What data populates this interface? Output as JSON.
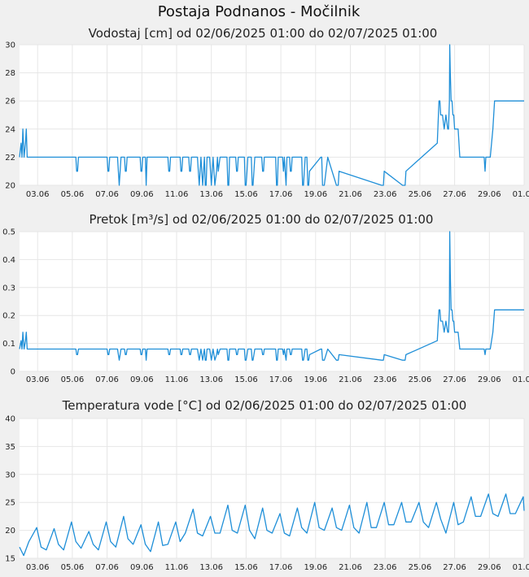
{
  "title": "Postaja Podnanos - Močilnik",
  "x_tick_labels": [
    "03.06",
    "05.06",
    "07.06",
    "09.06",
    "11.06",
    "13.06",
    "15.06",
    "17.06",
    "19.06",
    "21.06",
    "23.06",
    "25.06",
    "27.06",
    "29.06",
    "01.07"
  ],
  "line_color": "#1f8fd8",
  "chart_data": [
    {
      "type": "line",
      "title": "Vodostaj [cm] od 02/06/2025 01:00 do 02/07/2025 01:00",
      "ylim": [
        20,
        30
      ],
      "yticks": [
        20,
        22,
        24,
        26,
        28,
        30
      ],
      "xlim_days": [
        1.96,
        31.0
      ],
      "x_unit": "day of June 2025 (01.07 = 31)",
      "series": [
        {
          "x": [
            1.96,
            2.05,
            2.1,
            2.15,
            2.22,
            2.3,
            2.35,
            2.4,
            2.5,
            2.6,
            5.2,
            5.25,
            5.3,
            5.35,
            7.0,
            7.05,
            7.1,
            7.15,
            7.6,
            7.7,
            7.8,
            7.85,
            8.0,
            8.05,
            8.1,
            8.15,
            8.9,
            8.95,
            9.0,
            9.05,
            9.2,
            9.25,
            9.3,
            9.4,
            10.5,
            10.55,
            10.6,
            10.65,
            10.7,
            11.2,
            11.25,
            11.3,
            11.35,
            11.7,
            11.75,
            11.8,
            11.85,
            12.2,
            12.3,
            12.4,
            12.5,
            12.6,
            12.65,
            12.7,
            12.75,
            12.9,
            13.0,
            13.1,
            13.2,
            13.3,
            13.35,
            13.4,
            13.5,
            13.9,
            13.95,
            14.0,
            14.05,
            14.4,
            14.45,
            14.5,
            14.55,
            14.9,
            14.95,
            15.0,
            15.05,
            15.1,
            15.3,
            15.35,
            15.4,
            15.5,
            15.9,
            15.95,
            16.0,
            16.05,
            16.1,
            16.7,
            16.75,
            16.8,
            16.85,
            17.1,
            17.15,
            17.2,
            17.3,
            17.35,
            17.5,
            17.55,
            17.6,
            17.65,
            18.2,
            18.25,
            18.3,
            18.35,
            18.4,
            18.5,
            18.55,
            18.6,
            18.65,
            19.3,
            19.35,
            19.4,
            19.5,
            19.6,
            19.7,
            20.2,
            20.25,
            20.3,
            20.35,
            22.8,
            22.85,
            22.9,
            22.95,
            24.0,
            24.05,
            24.15,
            24.2,
            26.0,
            26.1,
            26.15,
            26.2,
            26.3,
            26.4,
            26.5,
            26.6,
            26.65,
            26.7,
            26.72,
            26.75,
            26.8,
            26.85,
            26.9,
            26.95,
            27.0,
            27.05,
            27.1,
            27.2,
            27.3,
            27.35,
            27.5,
            27.55,
            28.7,
            28.75,
            28.8,
            28.85,
            29.0,
            29.05,
            29.2,
            29.3,
            29.35,
            31.0
          ],
          "y": [
            22,
            23,
            22,
            24,
            22,
            23,
            24,
            22,
            22,
            22,
            22,
            21,
            21,
            22,
            22,
            21,
            21,
            22,
            22,
            20,
            22,
            22,
            22,
            21,
            21,
            22,
            22,
            21,
            21,
            22,
            22,
            20,
            22,
            22,
            22,
            21,
            21,
            22,
            22,
            22,
            21,
            21,
            22,
            22,
            21,
            21,
            22,
            22,
            20,
            22,
            20,
            22,
            20,
            20,
            22,
            22,
            20,
            22,
            20,
            21,
            22,
            21,
            22,
            22,
            20,
            20,
            22,
            22,
            21,
            21,
            22,
            22,
            20,
            20,
            21,
            22,
            22,
            20,
            20,
            22,
            22,
            21,
            21,
            22,
            22,
            22,
            20,
            20,
            22,
            22,
            21,
            22,
            20,
            22,
            22,
            21,
            21,
            22,
            22,
            20,
            20,
            21,
            22,
            22,
            20,
            20,
            21,
            22,
            22,
            20,
            20,
            21,
            22,
            20,
            20,
            20,
            21,
            20,
            20,
            20,
            21,
            20,
            20,
            20,
            21,
            23,
            26,
            26,
            25,
            25,
            24,
            25,
            24,
            24,
            26,
            30,
            28,
            26,
            26,
            25,
            25,
            24,
            24,
            24,
            24,
            22,
            22,
            22,
            22,
            22,
            21,
            22,
            22,
            22,
            22,
            24,
            26,
            26,
            26
          ]
        }
      ]
    },
    {
      "type": "line",
      "title": "Pretok [m³/s] od 02/06/2025 01:00 do 02/07/2025 01:00",
      "ylim": [
        0,
        0.5
      ],
      "yticks": [
        0,
        0.1,
        0.2,
        0.3,
        0.4,
        0.5
      ],
      "xlim_days": [
        1.96,
        31.0
      ],
      "x_unit": "day of June 2025 (01.07 = 31)",
      "series": [
        {
          "x": [
            1.96,
            2.05,
            2.1,
            2.15,
            2.22,
            2.3,
            2.35,
            2.4,
            2.5,
            2.6,
            5.2,
            5.25,
            5.3,
            5.35,
            7.0,
            7.05,
            7.1,
            7.15,
            7.6,
            7.7,
            7.8,
            7.85,
            8.0,
            8.05,
            8.1,
            8.15,
            8.9,
            8.95,
            9.0,
            9.05,
            9.2,
            9.25,
            9.3,
            9.4,
            10.5,
            10.55,
            10.6,
            10.65,
            10.7,
            11.2,
            11.25,
            11.3,
            11.35,
            11.7,
            11.75,
            11.8,
            11.85,
            12.2,
            12.3,
            12.4,
            12.5,
            12.6,
            12.65,
            12.7,
            12.75,
            12.9,
            13.0,
            13.1,
            13.2,
            13.3,
            13.35,
            13.4,
            13.5,
            13.9,
            13.95,
            14.0,
            14.05,
            14.4,
            14.45,
            14.5,
            14.55,
            14.9,
            14.95,
            15.0,
            15.05,
            15.1,
            15.3,
            15.35,
            15.4,
            15.5,
            15.9,
            15.95,
            16.0,
            16.05,
            16.1,
            16.7,
            16.75,
            16.8,
            16.85,
            17.1,
            17.15,
            17.2,
            17.3,
            17.35,
            17.5,
            17.55,
            17.6,
            17.65,
            18.2,
            18.25,
            18.3,
            18.35,
            18.4,
            18.5,
            18.55,
            18.6,
            18.65,
            19.3,
            19.35,
            19.4,
            19.5,
            19.6,
            19.7,
            20.2,
            20.25,
            20.3,
            20.35,
            22.8,
            22.85,
            22.9,
            22.95,
            24.0,
            24.05,
            24.15,
            24.2,
            26.0,
            26.1,
            26.15,
            26.2,
            26.3,
            26.4,
            26.5,
            26.6,
            26.65,
            26.7,
            26.72,
            26.75,
            26.8,
            26.85,
            26.9,
            26.95,
            27.0,
            27.05,
            27.1,
            27.2,
            27.3,
            27.35,
            27.5,
            27.55,
            28.7,
            28.75,
            28.8,
            28.85,
            29.0,
            29.05,
            29.2,
            29.3,
            29.35,
            31.0
          ],
          "y": [
            0.08,
            0.11,
            0.08,
            0.14,
            0.08,
            0.11,
            0.14,
            0.08,
            0.08,
            0.08,
            0.08,
            0.06,
            0.06,
            0.08,
            0.08,
            0.06,
            0.06,
            0.08,
            0.08,
            0.04,
            0.08,
            0.08,
            0.08,
            0.06,
            0.06,
            0.08,
            0.08,
            0.06,
            0.06,
            0.08,
            0.08,
            0.04,
            0.08,
            0.08,
            0.08,
            0.06,
            0.06,
            0.08,
            0.08,
            0.08,
            0.06,
            0.06,
            0.08,
            0.08,
            0.06,
            0.06,
            0.08,
            0.08,
            0.04,
            0.08,
            0.04,
            0.08,
            0.04,
            0.04,
            0.08,
            0.08,
            0.04,
            0.08,
            0.04,
            0.06,
            0.08,
            0.06,
            0.08,
            0.08,
            0.04,
            0.04,
            0.08,
            0.08,
            0.06,
            0.06,
            0.08,
            0.08,
            0.04,
            0.04,
            0.06,
            0.08,
            0.08,
            0.04,
            0.04,
            0.08,
            0.08,
            0.06,
            0.06,
            0.08,
            0.08,
            0.08,
            0.04,
            0.04,
            0.08,
            0.08,
            0.06,
            0.08,
            0.04,
            0.08,
            0.08,
            0.06,
            0.06,
            0.08,
            0.08,
            0.04,
            0.04,
            0.06,
            0.08,
            0.08,
            0.04,
            0.04,
            0.06,
            0.08,
            0.08,
            0.04,
            0.04,
            0.06,
            0.08,
            0.04,
            0.04,
            0.04,
            0.06,
            0.04,
            0.04,
            0.04,
            0.06,
            0.04,
            0.04,
            0.04,
            0.06,
            0.11,
            0.22,
            0.22,
            0.18,
            0.18,
            0.14,
            0.18,
            0.14,
            0.14,
            0.22,
            0.5,
            0.35,
            0.22,
            0.22,
            0.18,
            0.18,
            0.14,
            0.14,
            0.14,
            0.14,
            0.08,
            0.08,
            0.08,
            0.08,
            0.08,
            0.06,
            0.08,
            0.08,
            0.08,
            0.08,
            0.14,
            0.22,
            0.22,
            0.22
          ]
        }
      ]
    },
    {
      "type": "line",
      "title": "Temperatura vode [°C] od 02/06/2025 01:00 do 02/07/2025 01:00",
      "ylim": [
        15,
        40
      ],
      "yticks": [
        15,
        20,
        25,
        30,
        35,
        40
      ],
      "xlim_days": [
        1.96,
        31.0
      ],
      "x_unit": "day of June 2025 (01.07 = 31)",
      "series": [
        {
          "x": [
            1.96,
            2.2,
            2.5,
            2.95,
            3.2,
            3.5,
            3.95,
            4.2,
            4.5,
            4.95,
            5.2,
            5.5,
            5.95,
            6.2,
            6.5,
            6.95,
            7.2,
            7.5,
            7.95,
            8.2,
            8.5,
            8.95,
            9.2,
            9.5,
            9.95,
            10.2,
            10.5,
            10.95,
            11.2,
            11.5,
            11.95,
            12.2,
            12.5,
            12.95,
            13.2,
            13.5,
            13.95,
            14.2,
            14.5,
            14.95,
            15.2,
            15.5,
            15.95,
            16.2,
            16.5,
            16.95,
            17.2,
            17.5,
            17.95,
            18.2,
            18.5,
            18.95,
            19.2,
            19.5,
            19.95,
            20.2,
            20.5,
            20.95,
            21.2,
            21.5,
            21.95,
            22.2,
            22.5,
            22.95,
            23.2,
            23.5,
            23.95,
            24.2,
            24.5,
            24.95,
            25.2,
            25.5,
            25.95,
            26.2,
            26.5,
            26.95,
            27.2,
            27.5,
            27.95,
            28.2,
            28.5,
            28.95,
            29.2,
            29.5,
            29.95,
            30.2,
            30.5,
            30.95,
            31.0
          ],
          "y": [
            17,
            15.5,
            18,
            20.5,
            17,
            16.5,
            20.3,
            17.5,
            16.5,
            21.5,
            18,
            16.8,
            19.8,
            17.5,
            16.5,
            21.5,
            18,
            17,
            22.5,
            18.5,
            17.5,
            21,
            17.5,
            16.2,
            21.5,
            17.3,
            17.5,
            21.5,
            18,
            19.5,
            23.8,
            19.5,
            19,
            22.5,
            19.5,
            19.5,
            24.5,
            20,
            19.5,
            24.5,
            20,
            18.5,
            24,
            20,
            19.5,
            23,
            19.5,
            19,
            24,
            20.5,
            19.5,
            25,
            20.5,
            20,
            24,
            20.5,
            20,
            24.5,
            20.5,
            19.5,
            25,
            20.5,
            20.5,
            25,
            21,
            21,
            25,
            21.5,
            21.5,
            25,
            21.5,
            20.5,
            25,
            22,
            19.5,
            25,
            21,
            21.5,
            26,
            22.5,
            22.5,
            26.5,
            23,
            22.5,
            26.5,
            23,
            23,
            26,
            23.5
          ]
        }
      ]
    }
  ]
}
